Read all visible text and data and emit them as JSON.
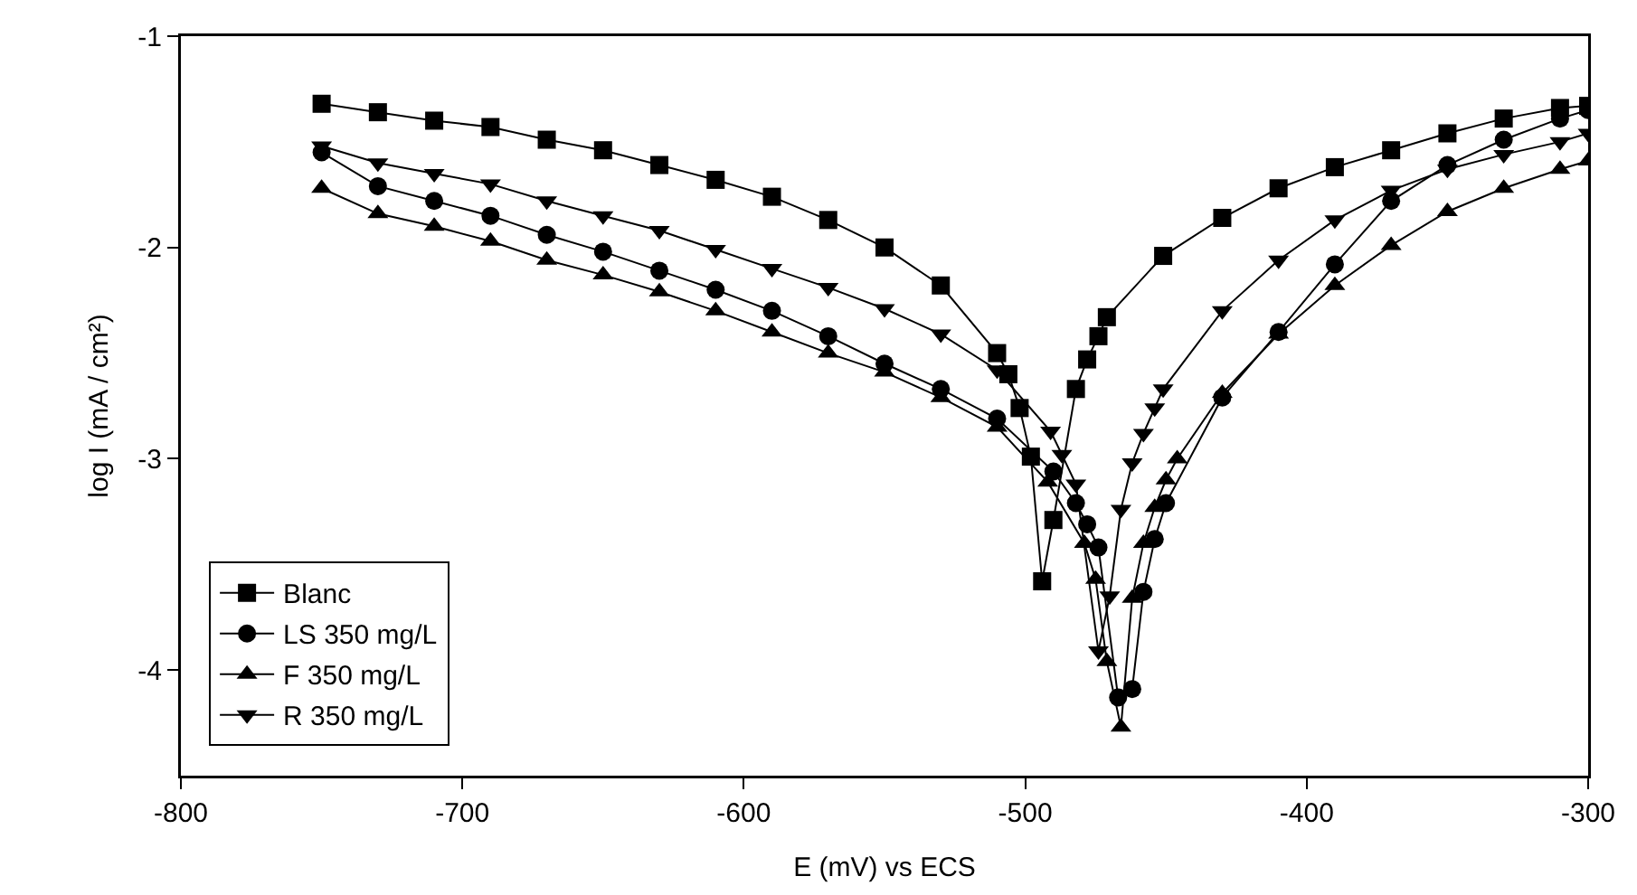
{
  "chart_data": {
    "type": "line",
    "xlabel": "E (mV) vs ECS",
    "ylabel": "log I (mA / cm²)",
    "xlim": [
      -800,
      -300
    ],
    "xticks": [
      -800,
      -700,
      -600,
      -500,
      -400,
      -300
    ],
    "ylim": [
      -4.5,
      -1
    ],
    "yticks": [
      -1,
      -2,
      -3,
      -4
    ],
    "grid": false,
    "legend": "bottom left",
    "line_style": "solid",
    "series": [
      {
        "name": "Blanc",
        "color": "#000000",
        "marker": "square",
        "x": [
          -750,
          -730,
          -710,
          -690,
          -670,
          -650,
          -630,
          -610,
          -590,
          -570,
          -550,
          -530,
          -510,
          -506,
          -502,
          -498,
          -494,
          -490,
          -482,
          -478,
          -474,
          -471,
          -451,
          -430,
          -410,
          -390,
          -370,
          -350,
          -330,
          -310,
          -300
        ],
        "values": [
          -1.32,
          -1.36,
          -1.4,
          -1.43,
          -1.49,
          -1.54,
          -1.61,
          -1.68,
          -1.76,
          -1.87,
          -2.0,
          -2.18,
          -2.5,
          -2.6,
          -2.76,
          -2.99,
          -3.58,
          -3.29,
          -2.67,
          -2.53,
          -2.42,
          -2.33,
          -2.04,
          -1.86,
          -1.72,
          -1.62,
          -1.54,
          -1.46,
          -1.39,
          -1.34,
          -1.33
        ]
      },
      {
        "name": "LS 350 mg/L",
        "color": "#000000",
        "marker": "circle",
        "x": [
          -750,
          -730,
          -710,
          -690,
          -670,
          -650,
          -630,
          -610,
          -590,
          -570,
          -550,
          -530,
          -510,
          -490,
          -482,
          -478,
          -474,
          -467,
          -462,
          -458,
          -454,
          -450,
          -430,
          -410,
          -390,
          -370,
          -350,
          -330,
          -310,
          -300
        ],
        "values": [
          -1.55,
          -1.71,
          -1.78,
          -1.85,
          -1.94,
          -2.02,
          -2.11,
          -2.2,
          -2.3,
          -2.42,
          -2.55,
          -2.67,
          -2.81,
          -3.06,
          -3.21,
          -3.31,
          -3.42,
          -4.13,
          -4.09,
          -3.63,
          -3.38,
          -3.21,
          -2.71,
          -2.4,
          -2.08,
          -1.78,
          -1.61,
          -1.49,
          -1.39,
          -1.35
        ]
      },
      {
        "name": "F 350 mg/L",
        "color": "#000000",
        "marker": "triangle",
        "x": [
          -750,
          -730,
          -710,
          -690,
          -670,
          -650,
          -630,
          -610,
          -590,
          -570,
          -550,
          -530,
          -510,
          -492,
          -479,
          -475,
          -471,
          -466,
          -462,
          -458,
          -454,
          -450,
          -446,
          -430,
          -410,
          -390,
          -370,
          -350,
          -330,
          -310,
          -300
        ],
        "values": [
          -1.72,
          -1.84,
          -1.9,
          -1.97,
          -2.06,
          -2.13,
          -2.21,
          -2.3,
          -2.4,
          -2.5,
          -2.59,
          -2.71,
          -2.85,
          -3.11,
          -3.4,
          -3.57,
          -3.96,
          -4.27,
          -3.66,
          -3.4,
          -3.23,
          -3.1,
          -3.0,
          -2.69,
          -2.41,
          -2.18,
          -1.99,
          -1.83,
          -1.72,
          -1.63,
          -1.59
        ]
      },
      {
        "name": "R 350 mg/L",
        "color": "#000000",
        "marker": "triangle-down",
        "x": [
          -750,
          -730,
          -710,
          -690,
          -670,
          -650,
          -630,
          -610,
          -590,
          -570,
          -550,
          -530,
          -510,
          -491,
          -487,
          -482,
          -474,
          -470,
          -466,
          -462,
          -458,
          -454,
          -451,
          -430,
          -410,
          -390,
          -370,
          -350,
          -330,
          -310,
          -300
        ],
        "values": [
          -1.52,
          -1.6,
          -1.65,
          -1.7,
          -1.78,
          -1.85,
          -1.92,
          -2.01,
          -2.1,
          -2.19,
          -2.29,
          -2.41,
          -2.58,
          -2.87,
          -2.98,
          -3.12,
          -3.91,
          -3.65,
          -3.24,
          -3.02,
          -2.88,
          -2.76,
          -2.67,
          -2.3,
          -2.06,
          -1.87,
          -1.73,
          -1.63,
          -1.56,
          -1.5,
          -1.46
        ]
      }
    ]
  }
}
